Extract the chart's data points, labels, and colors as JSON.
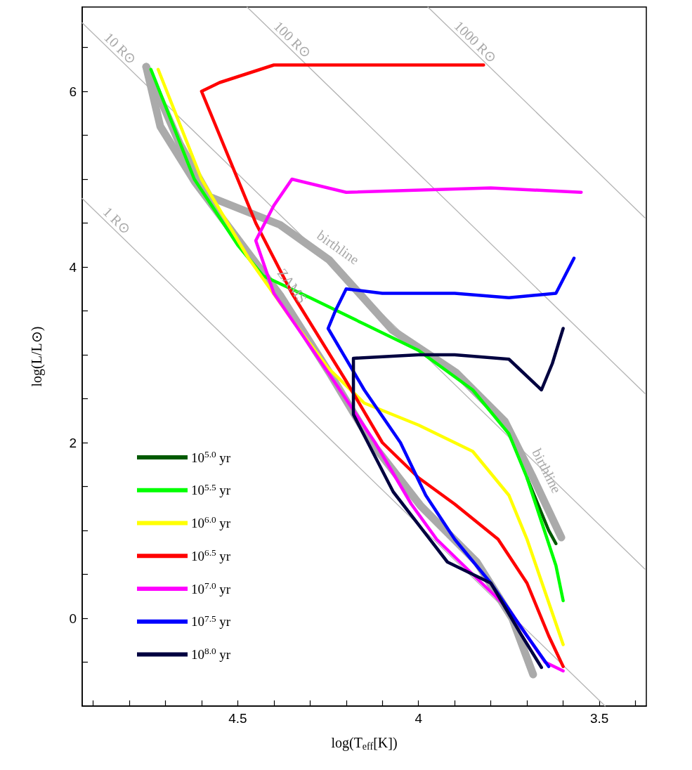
{
  "chart_data": {
    "type": "line",
    "xlabel": "log(T$_{eff}$[K])",
    "ylabel": "log(L/L⊙)",
    "xlim": [
      4.93,
      3.37
    ],
    "ylim": [
      -1,
      6.96
    ],
    "xticks": [
      {
        "value": 4.9,
        "label": null
      },
      {
        "value": 4.8,
        "label": null
      },
      {
        "value": 4.7,
        "label": null
      },
      {
        "value": 4.6,
        "label": null
      },
      4.5,
      {
        "value": 4.4,
        "label": null
      },
      {
        "value": 4.3,
        "label": null
      },
      {
        "value": 4.2,
        "label": null
      },
      {
        "value": 4.1,
        "label": null
      },
      4,
      {
        "value": 3.9,
        "label": null
      },
      {
        "value": 3.8,
        "label": null
      },
      {
        "value": 3.7,
        "label": null
      },
      {
        "value": 3.6,
        "label": null
      },
      3.5,
      {
        "value": 3.4,
        "label": null
      }
    ],
    "yticks": [
      {
        "value": -0.5,
        "label": null
      },
      0,
      {
        "value": 0.5,
        "label": null
      },
      {
        "value": 1,
        "label": null
      },
      {
        "value": 1.5,
        "label": null
      },
      2,
      {
        "value": 2.5,
        "label": null
      },
      {
        "value": 3,
        "label": null
      },
      {
        "value": 3.5,
        "label": null
      },
      4,
      {
        "value": 4.5,
        "label": null
      },
      {
        "value": 5,
        "label": null
      },
      {
        "value": 5.5,
        "label": null
      },
      6,
      {
        "value": 6.5,
        "label": null
      }
    ],
    "grid": false,
    "legend": "bottom left",
    "marker": "none",
    "line_style": "solid",
    "series": [
      {
        "color": "#b4b4b4",
        "x": [
          4.93,
          3.484
        ],
        "values": [
          4.78,
          -1.0
        ]
      },
      {
        "color": "#b4b4b4",
        "x": [
          4.93,
          3.374
        ],
        "values": [
          6.78,
          0.56
        ]
      },
      {
        "color": "#b4b4b4",
        "x": [
          4.474,
          3.374
        ],
        "values": [
          6.96,
          2.56
        ]
      },
      {
        "color": "#b4b4b4",
        "x": [
          3.974,
          3.374
        ],
        "values": [
          6.96,
          4.56
        ]
      },
      {
        "color": "#aaaaaa",
        "x": [
          4.753,
          4.714,
          4.617,
          4.5,
          4.383,
          4.247,
          4.13,
          3.994,
          3.839,
          3.741,
          3.683
        ],
        "values": [
          6.28,
          5.6,
          4.96,
          4.32,
          3.68,
          2.8,
          2.0,
          1.28,
          0.64,
          0,
          -0.64
        ]
      },
      {
        "color": "#aaaaaa",
        "x": [
          4.753,
          4.66,
          4.578,
          4.383,
          4.247,
          4.072,
          3.897,
          3.761,
          3.683,
          3.605
        ],
        "values": [
          6.28,
          5.4,
          4.8,
          4.48,
          4.08,
          3.28,
          2.8,
          2.24,
          1.6,
          0.92
        ]
      },
      {
        "name": "10$^{5.0}$ yr",
        "color": "#005a00",
        "x": [
          3.7,
          3.68,
          3.66,
          3.64,
          3.62
        ],
        "values": [
          1.6,
          1.4,
          1.2,
          1.0,
          0.85
        ]
      },
      {
        "name": "10$^{5.5}$ yr",
        "color": "#00ff00",
        "x": [
          4.74,
          4.62,
          4.5,
          4.43,
          4.3,
          4.15,
          4.0,
          3.85,
          3.75,
          3.7,
          3.66,
          3.62,
          3.6
        ],
        "values": [
          6.25,
          5.0,
          4.25,
          3.9,
          3.65,
          3.35,
          3.05,
          2.6,
          2.1,
          1.6,
          1.1,
          0.6,
          0.2
        ]
      },
      {
        "name": "10$^{6.0}$ yr",
        "color": "#ffff00",
        "x": [
          4.72,
          4.6,
          4.47,
          4.35,
          4.25,
          4.15,
          4.0,
          3.85,
          3.75,
          3.7,
          3.65,
          3.6
        ],
        "values": [
          6.25,
          5.0,
          4.1,
          3.4,
          2.85,
          2.45,
          2.2,
          1.9,
          1.4,
          0.9,
          0.3,
          -0.3
        ]
      },
      {
        "name": "10$^{6.5}$ yr",
        "color": "#ff0000",
        "x": [
          3.82,
          4.2,
          4.4,
          4.55,
          4.6,
          4.55,
          4.45,
          4.35,
          4.2,
          4.1,
          4.0,
          3.9,
          3.78,
          3.7,
          3.64,
          3.6
        ],
        "values": [
          6.3,
          6.3,
          6.3,
          6.1,
          6.0,
          5.5,
          4.5,
          3.7,
          2.7,
          2.0,
          1.6,
          1.3,
          0.9,
          0.4,
          -0.2,
          -0.55
        ]
      },
      {
        "name": "10$^{7.0}$ yr",
        "color": "#ff00ff",
        "x": [
          3.55,
          3.8,
          4.2,
          4.35,
          4.4,
          4.45,
          4.4,
          4.25,
          4.12,
          4.02,
          3.95,
          3.85,
          3.75,
          3.65,
          3.6
        ],
        "values": [
          4.85,
          4.9,
          4.85,
          5.0,
          4.7,
          4.3,
          3.7,
          2.8,
          2.0,
          1.3,
          0.9,
          0.5,
          0.1,
          -0.5,
          -0.6
        ]
      },
      {
        "name": "10$^{7.5}$ yr",
        "color": "#0000ff",
        "x": [
          3.57,
          3.62,
          3.75,
          3.9,
          4.1,
          4.2,
          4.23,
          4.25,
          4.15,
          4.05,
          3.98,
          3.9,
          3.8,
          3.7,
          3.64
        ],
        "values": [
          4.1,
          3.7,
          3.65,
          3.7,
          3.7,
          3.75,
          3.5,
          3.3,
          2.6,
          2.0,
          1.4,
          0.9,
          0.4,
          -0.2,
          -0.55
        ]
      },
      {
        "name": "10$^{8.0}$ yr",
        "color": "#000040",
        "x": [
          3.6,
          3.63,
          3.66,
          3.75,
          3.9,
          4.0,
          4.18,
          4.18,
          4.07,
          3.92,
          3.8,
          3.72,
          3.66
        ],
        "values": [
          3.3,
          2.9,
          2.6,
          2.95,
          3.0,
          3.0,
          2.96,
          2.32,
          1.44,
          0.64,
          0.4,
          -0.16,
          -0.56
        ]
      }
    ],
    "annotations": [
      {
        "text": "1 R⊙",
        "x": 4.85,
        "y": 4.46
      },
      {
        "text": "10 R⊙",
        "x": 4.84,
        "y": 6.42
      },
      {
        "text": "100 R⊙",
        "x": 4.364,
        "y": 6.52
      },
      {
        "text": "1000 R⊙",
        "x": 3.858,
        "y": 6.496
      },
      {
        "text": "ZAMS",
        "x": 4.383,
        "y": 3.68
      },
      {
        "text": "birthline",
        "x": 4.247,
        "y": 4.08
      },
      {
        "text": "birthline",
        "x": 3.683,
        "y": 1.6
      }
    ]
  }
}
